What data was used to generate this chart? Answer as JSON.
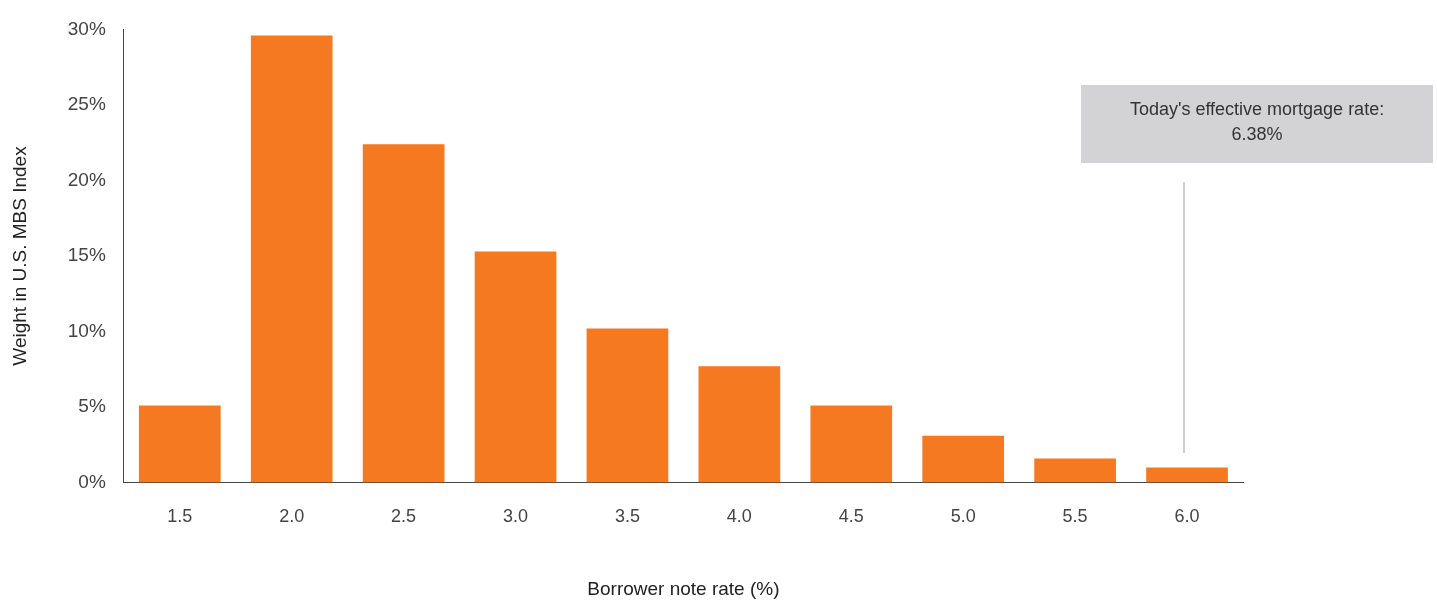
{
  "chart_data": {
    "type": "bar",
    "xlabel": "Borrower note rate (%)",
    "ylabel": "Weight in U.S. MBS Index",
    "categories": [
      "1.5",
      "2.0",
      "2.5",
      "3.0",
      "3.5",
      "4.0",
      "4.5",
      "5.0",
      "5.5",
      "6.0"
    ],
    "values": [
      5.1,
      29.6,
      22.4,
      15.3,
      10.2,
      7.7,
      5.1,
      3.1,
      1.6,
      1.0
    ],
    "color": "#f47920",
    "ylim": [
      0,
      30
    ],
    "yticks": [
      {
        "value": 0,
        "label": "0%"
      },
      {
        "value": 5,
        "label": "5%"
      },
      {
        "value": 10,
        "label": "10%"
      },
      {
        "value": 15,
        "label": "15%"
      },
      {
        "value": 20,
        "label": "20%"
      },
      {
        "value": 25,
        "label": "25%"
      },
      {
        "value": 30,
        "label": "30%"
      }
    ],
    "grid": false,
    "legend": false,
    "annotations": [
      "Today's effective mortgage rate: 6.38%"
    ]
  }
}
